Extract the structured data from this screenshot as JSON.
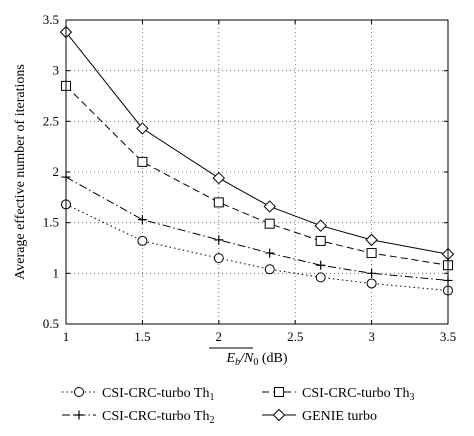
{
  "chart_data": {
    "type": "line",
    "title": "",
    "xlabel_main": "E",
    "xlabel_sub": "b",
    "xlabel_slash": "/N",
    "xlabel_sub2": "0",
    "xlabel_unit": " (dB)",
    "ylabel": "Average effective number of iterations",
    "xlim": [
      1,
      3.5
    ],
    "ylim": [
      0.5,
      3.5
    ],
    "grid": true,
    "xticks": [
      1,
      1.5,
      2,
      2.5,
      3,
      3.5
    ],
    "xtick_labels": [
      "1",
      "1.5",
      "2",
      "2.5",
      "3",
      "3.5"
    ],
    "yticks": [
      0.5,
      1,
      1.5,
      2,
      2.5,
      3,
      3.5
    ],
    "ytick_labels": [
      "0.5",
      "1",
      "1.5",
      "2",
      "2.5",
      "3",
      "3.5"
    ],
    "legend_position": "bottom",
    "series": [
      {
        "name_main": "CSI-CRC-turbo Th",
        "name_sub": "1",
        "linestyle": "dotted",
        "marker": "circle",
        "x": [
          1,
          1.5,
          2,
          2.333,
          2.667,
          3,
          3.5
        ],
        "y": [
          1.68,
          1.32,
          1.15,
          1.04,
          0.96,
          0.9,
          0.83
        ]
      },
      {
        "name_main": "CSI-CRC-turbo Th",
        "name_sub": "2",
        "linestyle": "dashdot",
        "marker": "plus",
        "x": [
          1,
          1.5,
          2,
          2.333,
          2.667,
          3,
          3.5
        ],
        "y": [
          1.95,
          1.53,
          1.33,
          1.2,
          1.08,
          1.0,
          0.93
        ]
      },
      {
        "name_main": "CSI-CRC-turbo Th",
        "name_sub": "3",
        "linestyle": "dashed",
        "marker": "square",
        "x": [
          1,
          1.5,
          2,
          2.333,
          2.667,
          3,
          3.5
        ],
        "y": [
          2.85,
          2.1,
          1.7,
          1.49,
          1.32,
          1.2,
          1.08
        ]
      },
      {
        "name_main": "GENIE turbo",
        "name_sub": "",
        "linestyle": "solid",
        "marker": "diamond",
        "x": [
          1,
          1.5,
          2,
          2.333,
          2.667,
          3,
          3.5
        ],
        "y": [
          3.38,
          2.43,
          1.94,
          1.66,
          1.47,
          1.33,
          1.19
        ]
      }
    ],
    "legend_layout": [
      0,
      2,
      1,
      3
    ]
  }
}
